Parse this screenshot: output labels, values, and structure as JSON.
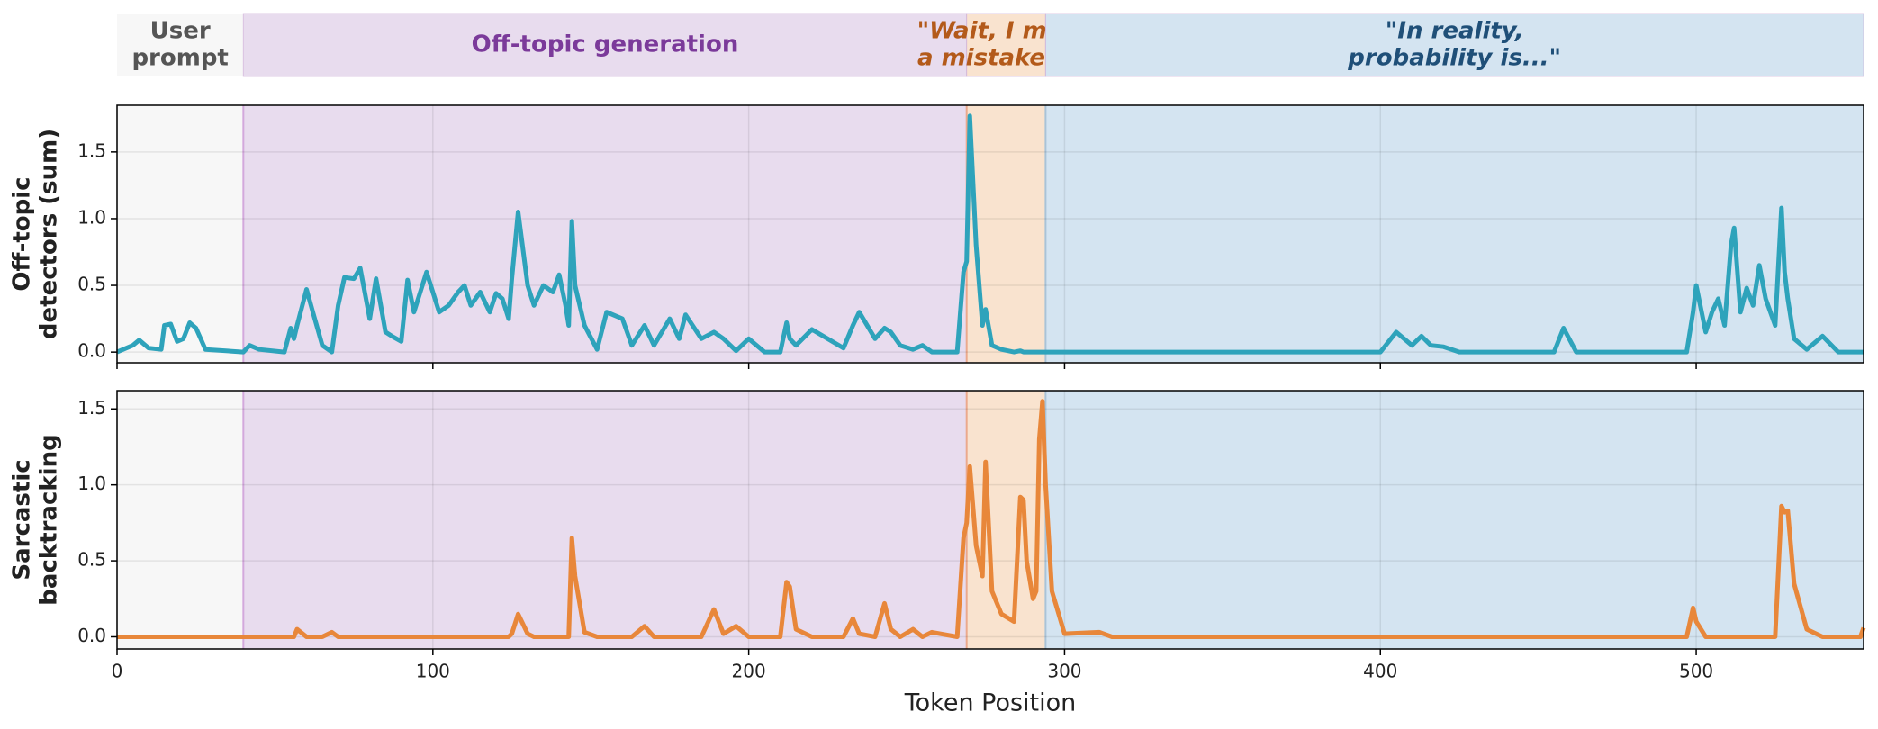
{
  "chart_data": {
    "type": "line",
    "xlabel": "Token Position",
    "xlim": [
      0,
      553
    ],
    "xticks": [
      0,
      100,
      200,
      300,
      400,
      500
    ],
    "grid": true,
    "regions": [
      {
        "label_lines": [
          "User",
          "prompt"
        ],
        "start": 0,
        "end": 40,
        "color": "#f7f7f7",
        "text_color": "#555555",
        "italic": false
      },
      {
        "label_lines": [
          "Off-topic generation"
        ],
        "start": 40,
        "end": 269,
        "color": "#e8dcee",
        "text_color": "#7b3a9a",
        "italic": false
      },
      {
        "label_lines": [
          "\"Wait, I made",
          "a mistake!...\""
        ],
        "start": 269,
        "end": 294,
        "color": "#f9e3cf",
        "text_color": "#b35a1a",
        "italic": true
      },
      {
        "label_lines": [
          "\"In reality,",
          "probability is...\""
        ],
        "start": 294,
        "end": 553,
        "color": "#d4e4f1",
        "text_color": "#1f4f78",
        "italic": true
      }
    ],
    "x": [
      0,
      5,
      7,
      10,
      14,
      15,
      17,
      19,
      21,
      23,
      25,
      28,
      40,
      42,
      45,
      53,
      55,
      56,
      57,
      60,
      62,
      65,
      68,
      70,
      72,
      75,
      77,
      80,
      82,
      85,
      87,
      90,
      92,
      94,
      98,
      100,
      102,
      105,
      108,
      110,
      112,
      115,
      118,
      120,
      122,
      124,
      125,
      127,
      130,
      132,
      135,
      138,
      140,
      142,
      143,
      144,
      145,
      148,
      152,
      155,
      160,
      163,
      167,
      170,
      175,
      178,
      180,
      185,
      189,
      192,
      196,
      200,
      205,
      210,
      212,
      213,
      215,
      220,
      225,
      230,
      233,
      235,
      240,
      243,
      245,
      248,
      252,
      255,
      258,
      266,
      268,
      269,
      270,
      272,
      274,
      275,
      277,
      280,
      284,
      286,
      287,
      288,
      290,
      291,
      292,
      293,
      294,
      296,
      300,
      311,
      315,
      400,
      405,
      410,
      413,
      416,
      420,
      425,
      455,
      458,
      462,
      497,
      499,
      500,
      503,
      505,
      507,
      509,
      511,
      512,
      514,
      516,
      518,
      520,
      522,
      525,
      527,
      528,
      529,
      531,
      535,
      540,
      545,
      552,
      553
    ],
    "panels": [
      {
        "ylabel_lines": [
          "Off-topic",
          "detectors (sum)"
        ],
        "color": "#2ea3bb",
        "ylim": [
          -0.08,
          1.85
        ],
        "yticks": [
          {
            "value": 0,
            "label": "0.0"
          },
          {
            "value": 0.5,
            "label": "0.5"
          },
          {
            "value": 1,
            "label": "1.0"
          },
          {
            "value": 1.5,
            "label": "1.5"
          }
        ],
        "values": [
          0,
          0.05,
          0.09,
          0.03,
          0.02,
          0.2,
          0.21,
          0.08,
          0.1,
          0.22,
          0.18,
          0.02,
          0,
          0.05,
          0.02,
          0,
          0.18,
          0.1,
          0.2,
          0.47,
          0.3,
          0.05,
          0,
          0.35,
          0.56,
          0.55,
          0.63,
          0.25,
          0.55,
          0.15,
          0.12,
          0.08,
          0.54,
          0.3,
          0.6,
          0.45,
          0.3,
          0.35,
          0.45,
          0.5,
          0.35,
          0.45,
          0.3,
          0.44,
          0.4,
          0.25,
          0.55,
          1.05,
          0.5,
          0.35,
          0.5,
          0.45,
          0.58,
          0.35,
          0.2,
          0.98,
          0.5,
          0.2,
          0.02,
          0.3,
          0.25,
          0.05,
          0.2,
          0.05,
          0.25,
          0.1,
          0.28,
          0.1,
          0.15,
          0.1,
          0.01,
          0.1,
          0,
          0,
          0.22,
          0.1,
          0.05,
          0.17,
          0.1,
          0.03,
          0.2,
          0.3,
          0.1,
          0.18,
          0.15,
          0.05,
          0.02,
          0.05,
          0,
          0,
          0.6,
          0.68,
          1.77,
          0.8,
          0.2,
          0.32,
          0.05,
          0.02,
          0,
          0.01,
          0,
          0,
          0,
          0,
          0,
          0,
          0,
          0,
          0,
          0,
          0,
          0,
          0.15,
          0.05,
          0.12,
          0.05,
          0.04,
          0,
          0,
          0.18,
          0,
          0,
          0.3,
          0.5,
          0.15,
          0.3,
          0.4,
          0.2,
          0.8,
          0.93,
          0.3,
          0.48,
          0.35,
          0.65,
          0.4,
          0.2,
          1.08,
          0.6,
          0.4,
          0.1,
          0.02,
          0.12,
          0,
          0,
          0
        ]
      },
      {
        "ylabel_lines": [
          "Sarcastic",
          "backtracking"
        ],
        "color": "#e8873a",
        "ylim": [
          -0.08,
          1.62
        ],
        "yticks": [
          {
            "value": 0,
            "label": "0.0"
          },
          {
            "value": 0.5,
            "label": "0.5"
          },
          {
            "value": 1,
            "label": "1.0"
          },
          {
            "value": 1.5,
            "label": "1.5"
          }
        ],
        "values": [
          0,
          0,
          0,
          0,
          0,
          0,
          0,
          0,
          0,
          0,
          0,
          0,
          0,
          0,
          0,
          0,
          0,
          0,
          0.05,
          0,
          0,
          0,
          0.03,
          0,
          0,
          0,
          0,
          0,
          0,
          0,
          0,
          0,
          0,
          0,
          0,
          0,
          0,
          0,
          0,
          0,
          0,
          0,
          0,
          0,
          0,
          0,
          0.02,
          0.15,
          0.02,
          0,
          0,
          0,
          0,
          0,
          0,
          0.65,
          0.4,
          0.03,
          0,
          0,
          0,
          0,
          0.07,
          0,
          0,
          0,
          0,
          0,
          0.18,
          0.02,
          0.07,
          0,
          0,
          0,
          0.36,
          0.33,
          0.05,
          0,
          0,
          0,
          0.12,
          0.02,
          0,
          0.22,
          0.05,
          0,
          0.05,
          0,
          0.03,
          0,
          0.65,
          0.75,
          1.12,
          0.6,
          0.4,
          1.15,
          0.3,
          0.15,
          0.1,
          0.92,
          0.9,
          0.5,
          0.25,
          0.3,
          1.3,
          1.55,
          1.0,
          0.3,
          0.02,
          0.03,
          0,
          0,
          0,
          0,
          0,
          0,
          0,
          0,
          0,
          0,
          0,
          0,
          0.19,
          0.1,
          0,
          0,
          0,
          0,
          0,
          0,
          0,
          0,
          0,
          0,
          0,
          0,
          0.86,
          0.82,
          0.83,
          0.35,
          0.05,
          0,
          0,
          0,
          0.06
        ]
      }
    ]
  }
}
